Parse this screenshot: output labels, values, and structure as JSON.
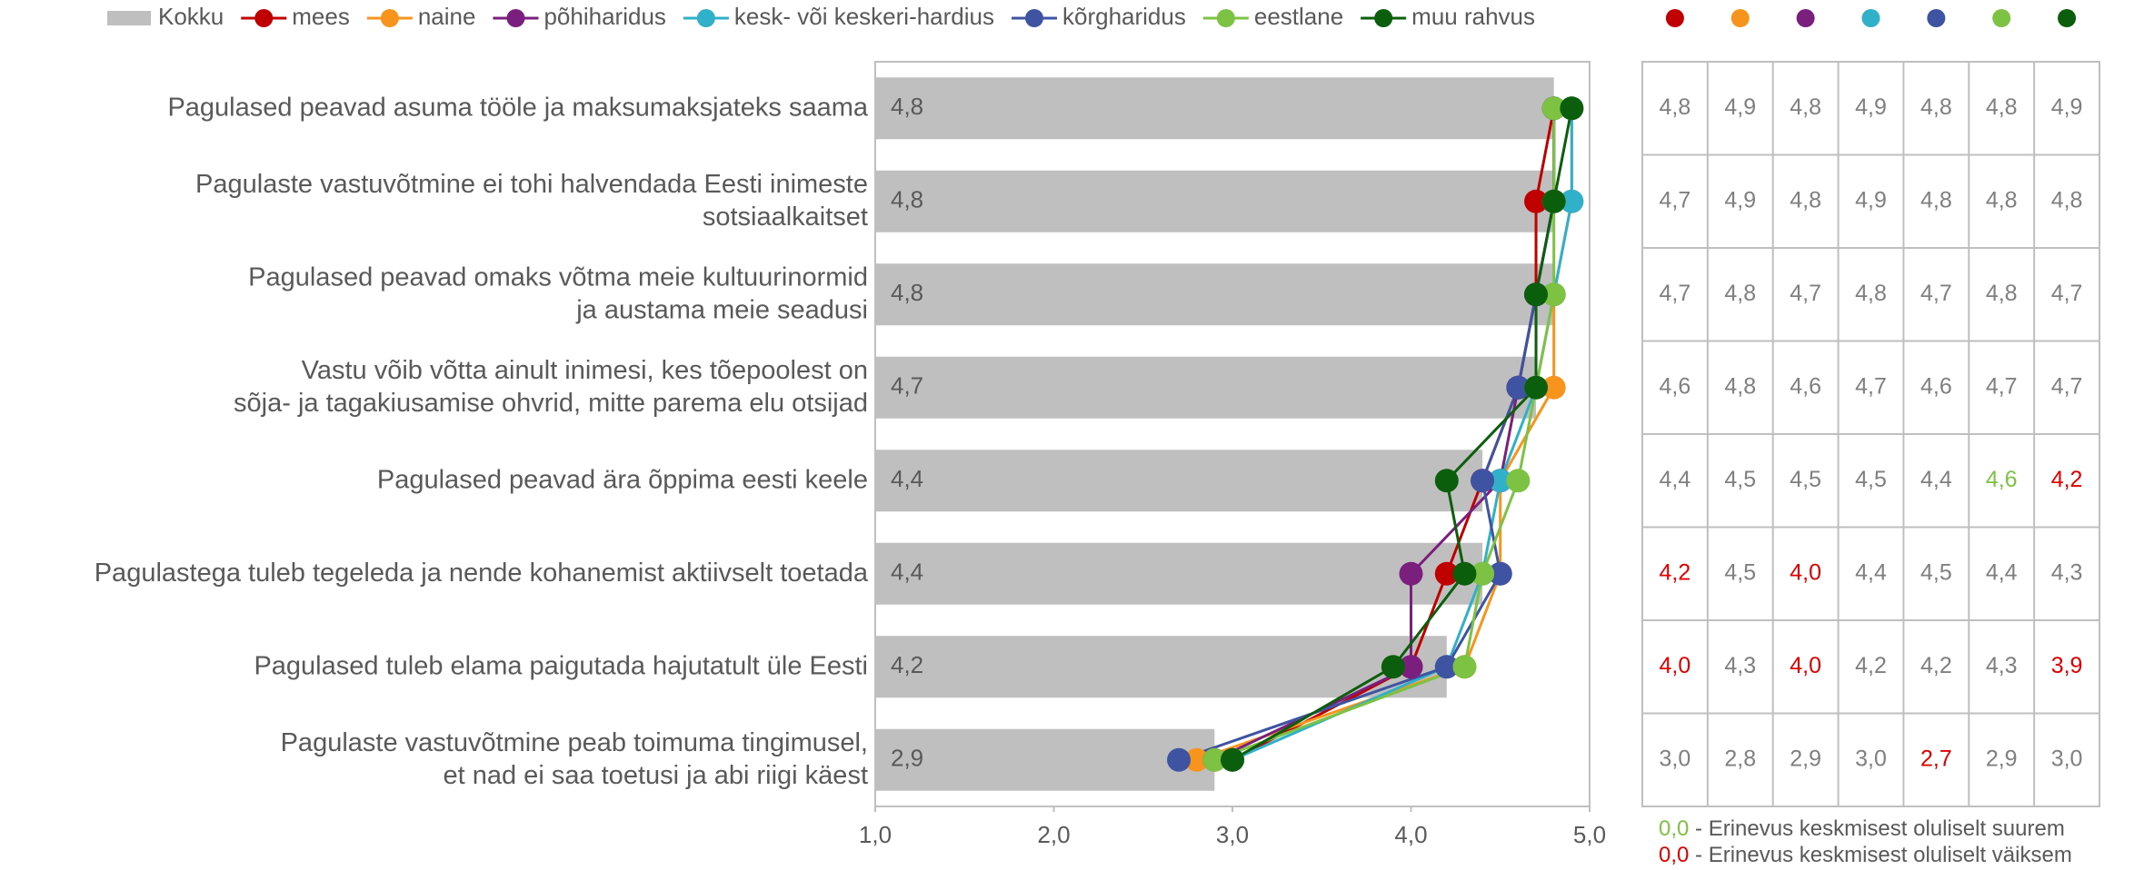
{
  "chart_data": {
    "type": "bar",
    "categories": [
      [
        "Pagulased peavad asuma tööle ja maksumaksjateks saama"
      ],
      [
        "Pagulaste vastuvõtmine ei tohi halvendada Eesti inimeste",
        "sotsiaalkaitset"
      ],
      [
        "Pagulased peavad omaks võtma meie kultuurinormid",
        "ja austama meie seadusi"
      ],
      [
        "Vastu võib võtta ainult inimesi, kes tõepoolest on",
        "sõja- ja tagakiusamise ohvrid, mitte parema elu otsijad"
      ],
      [
        "Pagulased peavad ära õppima eesti keele"
      ],
      [
        "Pagulastega tuleb tegeleda ja nende kohanemist aktiivselt toetada"
      ],
      [
        "Pagulased tuleb elama paigutada hajutatult üle Eesti"
      ],
      [
        "Pagulaste vastuvõtmine peab toimuma tingimusel,",
        "et nad ei saa toetusi ja abi riigi käest"
      ]
    ],
    "bar": {
      "name": "Kokku",
      "color": "#bfbfbf",
      "values": [
        4.8,
        4.8,
        4.8,
        4.7,
        4.4,
        4.4,
        4.2,
        2.9
      ],
      "value_labels": [
        "4,8",
        "4,8",
        "4,8",
        "4,7",
        "4,4",
        "4,4",
        "4,2",
        "2,9"
      ]
    },
    "series": [
      {
        "name": "mees",
        "color": "#c00000",
        "values": [
          4.8,
          4.7,
          4.7,
          4.6,
          4.4,
          4.2,
          4.0,
          3.0
        ],
        "value_labels": [
          "4,8",
          "4,7",
          "4,7",
          "4,6",
          "4,4",
          "4,2",
          "4,0",
          "3,0"
        ],
        "label_colors": [
          "#7f7f7f",
          "#7f7f7f",
          "#7f7f7f",
          "#7f7f7f",
          "#7f7f7f",
          "#e00000",
          "#e00000",
          "#7f7f7f"
        ]
      },
      {
        "name": "naine",
        "color": "#f7941d",
        "values": [
          4.9,
          4.9,
          4.8,
          4.8,
          4.5,
          4.5,
          4.3,
          2.8
        ],
        "value_labels": [
          "4,9",
          "4,9",
          "4,8",
          "4,8",
          "4,5",
          "4,5",
          "4,3",
          "2,8"
        ],
        "label_colors": [
          "#7f7f7f",
          "#7f7f7f",
          "#7f7f7f",
          "#7f7f7f",
          "#7f7f7f",
          "#7f7f7f",
          "#7f7f7f",
          "#7f7f7f"
        ]
      },
      {
        "name": "põhiharidus",
        "color": "#7b1f7e",
        "values": [
          4.8,
          4.8,
          4.7,
          4.6,
          4.5,
          4.0,
          4.0,
          2.9
        ],
        "value_labels": [
          "4,8",
          "4,8",
          "4,7",
          "4,6",
          "4,5",
          "4,0",
          "4,0",
          "2,9"
        ],
        "label_colors": [
          "#7f7f7f",
          "#7f7f7f",
          "#7f7f7f",
          "#7f7f7f",
          "#7f7f7f",
          "#e00000",
          "#e00000",
          "#7f7f7f"
        ]
      },
      {
        "name": "kesk- või keskeri-hardius",
        "color": "#31b0c9",
        "values": [
          4.9,
          4.9,
          4.8,
          4.7,
          4.5,
          4.4,
          4.2,
          3.0
        ],
        "value_labels": [
          "4,9",
          "4,9",
          "4,8",
          "4,7",
          "4,5",
          "4,4",
          "4,2",
          "3,0"
        ],
        "label_colors": [
          "#7f7f7f",
          "#7f7f7f",
          "#7f7f7f",
          "#7f7f7f",
          "#7f7f7f",
          "#7f7f7f",
          "#7f7f7f",
          "#7f7f7f"
        ]
      },
      {
        "name": "kõrgharidus",
        "color": "#3e54a3",
        "values": [
          4.8,
          4.8,
          4.7,
          4.6,
          4.4,
          4.5,
          4.2,
          2.7
        ],
        "value_labels": [
          "4,8",
          "4,8",
          "4,7",
          "4,6",
          "4,4",
          "4,5",
          "4,2",
          "2,7"
        ],
        "label_colors": [
          "#7f7f7f",
          "#7f7f7f",
          "#7f7f7f",
          "#7f7f7f",
          "#7f7f7f",
          "#7f7f7f",
          "#7f7f7f",
          "#e00000"
        ]
      },
      {
        "name": "eestlane",
        "color": "#7dc242",
        "values": [
          4.8,
          4.8,
          4.8,
          4.7,
          4.6,
          4.4,
          4.3,
          2.9
        ],
        "value_labels": [
          "4,8",
          "4,8",
          "4,8",
          "4,7",
          "4,6",
          "4,4",
          "4,3",
          "2,9"
        ],
        "label_colors": [
          "#7f7f7f",
          "#7f7f7f",
          "#7f7f7f",
          "#7f7f7f",
          "#7dc242",
          "#7f7f7f",
          "#7f7f7f",
          "#7f7f7f"
        ]
      },
      {
        "name": "muu rahvus",
        "color": "#0b5e0b",
        "values": [
          4.9,
          4.8,
          4.7,
          4.7,
          4.2,
          4.3,
          3.9,
          3.0
        ],
        "value_labels": [
          "4,9",
          "4,8",
          "4,7",
          "4,7",
          "4,2",
          "4,3",
          "3,9",
          "3,0"
        ],
        "label_colors": [
          "#7f7f7f",
          "#7f7f7f",
          "#7f7f7f",
          "#7f7f7f",
          "#e00000",
          "#7f7f7f",
          "#e00000",
          "#7f7f7f"
        ]
      }
    ],
    "xlim": [
      1,
      5
    ],
    "xticks": [
      {
        "value": 1,
        "label": "1,0"
      },
      {
        "value": 2,
        "label": "2,0"
      },
      {
        "value": 3,
        "label": "3,0"
      },
      {
        "value": 4,
        "label": "4,0"
      },
      {
        "value": 5,
        "label": "5,0"
      }
    ],
    "legend": "top",
    "notes": [
      {
        "sample": "0,0",
        "text": " - Erinevus keskmisest oluliselt suurem",
        "color": "#7dc242"
      },
      {
        "sample": "0,0",
        "text": " - Erinevus keskmisest oluliselt väiksem",
        "color": "#e00000"
      }
    ]
  }
}
